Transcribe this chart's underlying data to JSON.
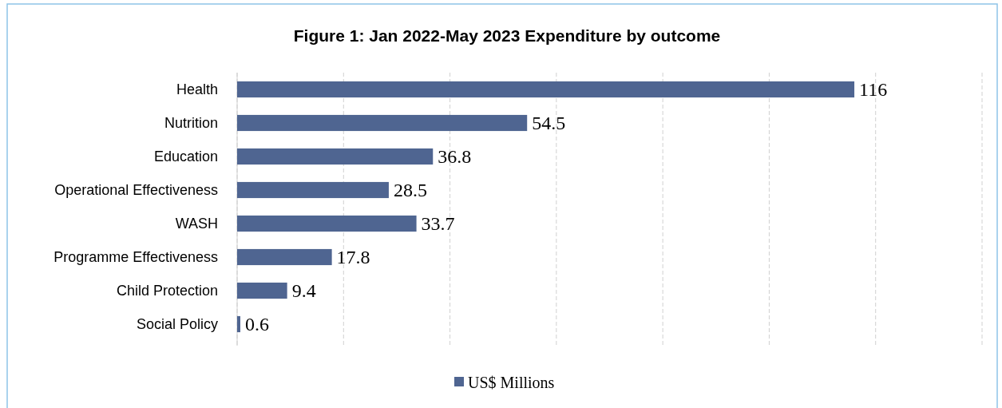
{
  "chart_data": {
    "type": "bar",
    "orientation": "horizontal",
    "title": "Figure 1: Jan 2022-May 2023 Expenditure by outcome",
    "categories": [
      "Health",
      "Nutrition",
      "Education",
      "Operational Effectiveness",
      "WASH",
      "Programme Effectiveness",
      "Child Protection",
      "Social Policy"
    ],
    "series": [
      {
        "name": "US$ Millions",
        "color": "#4f6591",
        "values": [
          116,
          54.5,
          36.8,
          28.5,
          33.7,
          17.8,
          9.4,
          0.6
        ]
      }
    ],
    "xlim": [
      0,
      140
    ],
    "xticks": [
      {
        "value": 0,
        "label": null
      },
      {
        "value": 20,
        "label": null
      },
      {
        "value": 40,
        "label": null
      },
      {
        "value": 60,
        "label": null
      },
      {
        "value": 80,
        "label": null
      },
      {
        "value": 100,
        "label": null
      },
      {
        "value": 120,
        "label": null
      },
      {
        "value": 140,
        "label": null
      }
    ],
    "tick_labels": "y",
    "grid": "x",
    "legend": "bottom",
    "data_labels": true
  }
}
